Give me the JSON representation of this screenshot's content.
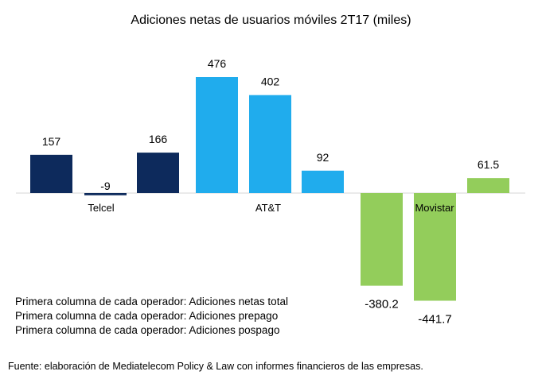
{
  "chart_data": {
    "type": "bar",
    "title": "Adiciones netas de usuarios móviles 2T17 (miles)",
    "groups": [
      "Telcel",
      "AT&T",
      "Movistar"
    ],
    "bars": [
      {
        "group": "Telcel",
        "value": 157,
        "label": "157",
        "color": "#0d2a5c"
      },
      {
        "group": "Telcel",
        "value": -9,
        "label": "-9",
        "color": "#0d2a5c"
      },
      {
        "group": "Telcel",
        "value": 166,
        "label": "166",
        "color": "#0d2a5c"
      },
      {
        "group": "AT&T",
        "value": 476,
        "label": "476",
        "color": "#20aced"
      },
      {
        "group": "AT&T",
        "value": 402,
        "label": "402",
        "color": "#20aced"
      },
      {
        "group": "AT&T",
        "value": 92,
        "label": "92",
        "color": "#20aced"
      },
      {
        "group": "Movistar",
        "value": -380.2,
        "label": "-380.2",
        "color": "#93cd5b"
      },
      {
        "group": "Movistar",
        "value": -441.7,
        "label": "-441.7",
        "color": "#93cd5b"
      },
      {
        "group": "Movistar",
        "value": 61.5,
        "label": "61.5",
        "color": "#93cd5b"
      }
    ],
    "grid": false
  },
  "notes": [
    "Primera columna de cada operador: Adiciones netas total",
    "Primera columna de cada operador: Adiciones prepago",
    "Primera columna de cada operador: Adiciones pospago"
  ],
  "source": "Fuente: elaboración de Mediatelecom Policy & Law con informes financieros de las empresas."
}
